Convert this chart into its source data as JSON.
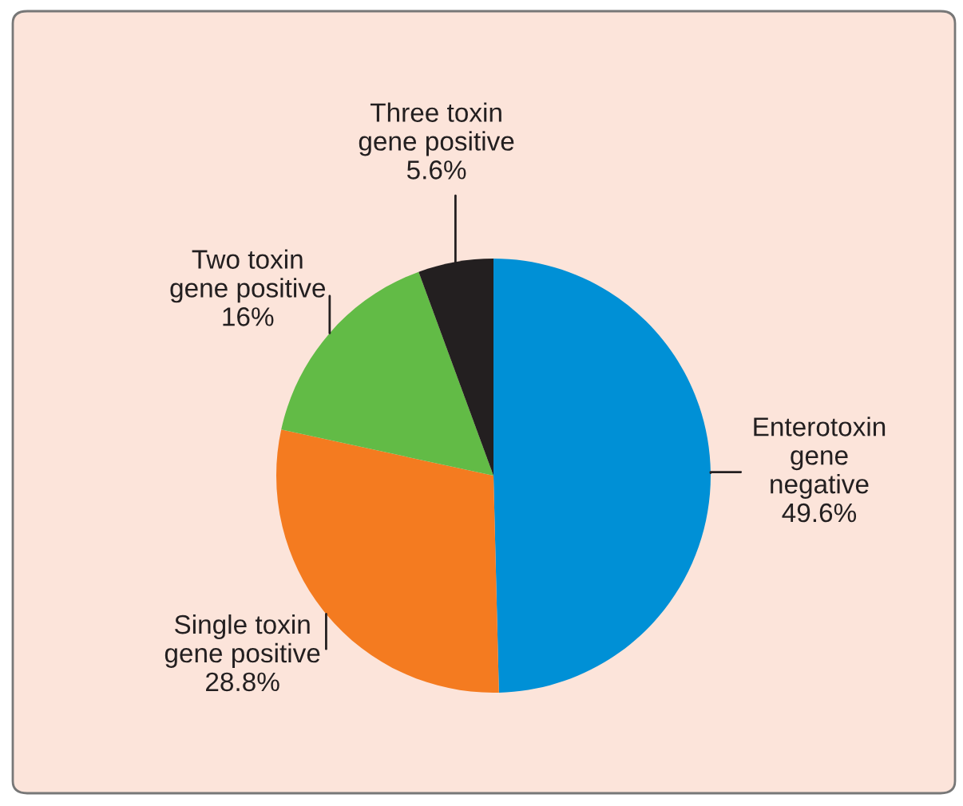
{
  "chart_data": {
    "type": "pie",
    "categories": [
      "Enterotoxin\ngene\nnegative",
      "Single toxin\ngene positive",
      "Two toxin\ngene positive",
      "Three toxin\ngene positive"
    ],
    "values": [
      49.6,
      28.8,
      16,
      5.6
    ],
    "colors": [
      "#0090d6",
      "#f47b20",
      "#62bb46",
      "#231f20"
    ],
    "value_labels": [
      "49.6%",
      "28.8%",
      "16%",
      "5.6%"
    ]
  }
}
